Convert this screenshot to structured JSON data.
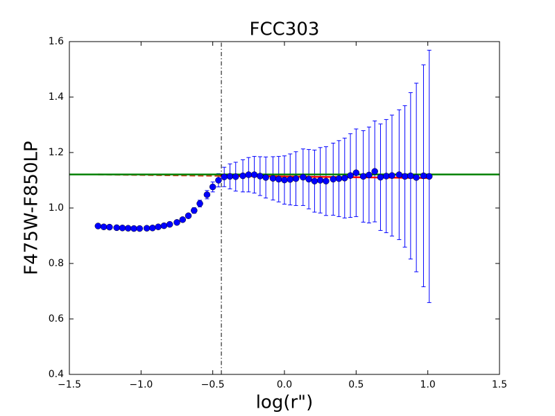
{
  "chart_data": {
    "type": "errorbar",
    "title": "FCC303",
    "xlabel": "log(r\")",
    "ylabel": "F475W-F850LP",
    "xlim": [
      -1.5,
      1.5
    ],
    "ylim": [
      0.4,
      1.6
    ],
    "xticks": [
      {
        "value": -1.5,
        "label": "−1.5"
      },
      {
        "value": -1.0,
        "label": "−1.0"
      },
      {
        "value": -0.5,
        "label": "−0.5"
      },
      {
        "value": 0.0,
        "label": "0.0"
      },
      0.5,
      {
        "value": 1.0,
        "label": "1.0"
      },
      1.5
    ],
    "yticks": [
      0.4,
      0.6,
      0.8,
      {
        "value": 1.0,
        "label": "1.0"
      },
      1.2,
      1.4,
      1.6
    ],
    "series": [
      {
        "color": "#0000ff",
        "x": [
          -1.3,
          -1.26,
          -1.22,
          -1.17,
          -1.13,
          -1.09,
          -1.05,
          -1.01,
          -0.96,
          -0.92,
          -0.88,
          -0.84,
          -0.8,
          -0.75,
          -0.71,
          -0.67,
          -0.63,
          -0.59,
          -0.54,
          -0.5,
          -0.46,
          -0.42,
          -0.38,
          -0.34,
          -0.29,
          -0.25,
          -0.21,
          -0.17,
          -0.13,
          -0.08,
          -0.04,
          0.0,
          0.04,
          0.08,
          0.13,
          0.17,
          0.21,
          0.25,
          0.29,
          0.34,
          0.38,
          0.42,
          0.46,
          0.5,
          0.55,
          0.59,
          0.63,
          0.67,
          0.71,
          0.75,
          0.8,
          0.84,
          0.88,
          0.92,
          0.97,
          1.01
        ],
        "values": [
          0.935,
          0.932,
          0.931,
          0.929,
          0.928,
          0.927,
          0.926,
          0.926,
          0.927,
          0.928,
          0.932,
          0.936,
          0.941,
          0.948,
          0.958,
          0.972,
          0.991,
          1.016,
          1.048,
          1.076,
          1.1,
          1.112,
          1.114,
          1.113,
          1.116,
          1.12,
          1.12,
          1.115,
          1.11,
          1.107,
          1.104,
          1.101,
          1.103,
          1.106,
          1.111,
          1.104,
          1.097,
          1.1,
          1.097,
          1.104,
          1.106,
          1.108,
          1.117,
          1.127,
          1.114,
          1.119,
          1.132,
          1.111,
          1.115,
          1.117,
          1.12,
          1.114,
          1.116,
          1.11,
          1.116,
          1.114
        ],
        "errors": [
          0.003,
          0.003,
          0.003,
          0.003,
          0.003,
          0.003,
          0.003,
          0.003,
          0.004,
          0.004,
          0.004,
          0.005,
          0.005,
          0.006,
          0.007,
          0.008,
          0.01,
          0.012,
          0.015,
          0.018,
          0.024,
          0.035,
          0.045,
          0.052,
          0.058,
          0.062,
          0.066,
          0.07,
          0.074,
          0.078,
          0.082,
          0.087,
          0.092,
          0.097,
          0.102,
          0.107,
          0.112,
          0.118,
          0.124,
          0.13,
          0.137,
          0.144,
          0.151,
          0.158,
          0.165,
          0.173,
          0.182,
          0.192,
          0.204,
          0.218,
          0.234,
          0.255,
          0.3,
          0.34,
          0.4,
          0.455
        ]
      }
    ],
    "lines": [
      {
        "color": "#cc4422",
        "style": "dashed",
        "x": [
          -1.3,
          -0.45
        ],
        "y": [
          1.121,
          1.116
        ]
      },
      {
        "color": "#ff0000",
        "style": "solid",
        "x": [
          -0.45,
          1.02
        ],
        "y": [
          1.116,
          1.108
        ]
      },
      {
        "color": "#008000",
        "style": "solid",
        "x": [
          -1.5,
          1.5
        ],
        "y": [
          1.121,
          1.121
        ]
      },
      {
        "color": "#000000",
        "style": "dashdot",
        "x": [
          -0.44,
          -0.44
        ],
        "y": [
          0.4,
          1.6
        ]
      }
    ]
  }
}
